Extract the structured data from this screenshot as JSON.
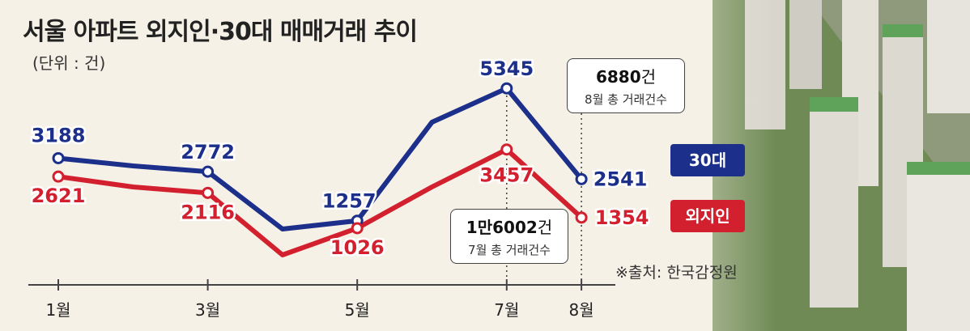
{
  "header": {
    "title": "서울 아파트 외지인·30대 매매거래 추이",
    "unit": "(단위 : 건)",
    "source": "※출처: 한국감정원"
  },
  "callouts": {
    "aug": {
      "value_num": "6880",
      "value_unit": "건",
      "caption": "8월 총 거래건수"
    },
    "jul": {
      "value_prefix": "1만",
      "value_num": "6002",
      "value_unit": "건",
      "caption": "7월 총 거래건수"
    }
  },
  "colors": {
    "series_30s": "#1c2f8a",
    "series_outsider": "#d3202f",
    "background": "#f6f1e6"
  },
  "chart_data": {
    "type": "line",
    "x": [
      1,
      2,
      3,
      4,
      5,
      6,
      7,
      8
    ],
    "tick_labels": [
      "1월",
      "3월",
      "5월",
      "7월",
      "8월"
    ],
    "tick_positions": [
      1,
      3,
      5,
      7,
      8
    ],
    "ylim": [
      0,
      6000
    ],
    "grid": false,
    "series": [
      {
        "name": "30대",
        "values": [
          3188,
          2950,
          2772,
          1000,
          1257,
          4300,
          5345,
          2541
        ],
        "labeled": [
          3188,
          null,
          2772,
          null,
          1257,
          null,
          5345,
          2541
        ]
      },
      {
        "name": "외지인",
        "values": [
          2621,
          2300,
          2116,
          200,
          1026,
          2300,
          3457,
          1354
        ],
        "labeled": [
          2621,
          null,
          2116,
          null,
          1026,
          null,
          3457,
          1354
        ]
      }
    ]
  }
}
